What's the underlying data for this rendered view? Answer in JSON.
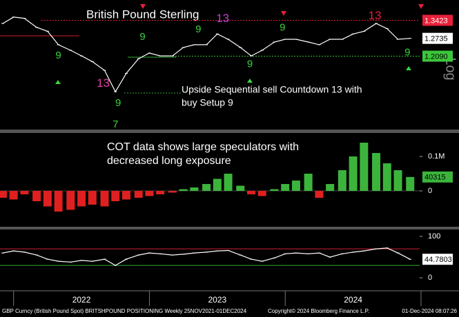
{
  "chart_data": [
    {
      "type": "line",
      "title": "British Pound Sterling",
      "annotation": [
        "Upside Sequential sell Countdown 13 with",
        "buy Setup 9"
      ],
      "scale_label": "Log",
      "log_scale": true,
      "color": "#ffffff",
      "x": [
        2021.92,
        2022.0,
        2022.08,
        2022.17,
        2022.25,
        2022.33,
        2022.42,
        2022.5,
        2022.58,
        2022.67,
        2022.75,
        2022.83,
        2022.92,
        2023.0,
        2023.08,
        2023.17,
        2023.25,
        2023.33,
        2023.42,
        2023.5,
        2023.58,
        2023.67,
        2023.75,
        2023.83,
        2023.92,
        2024.0,
        2024.08,
        2024.17,
        2024.25,
        2024.33,
        2024.42,
        2024.5,
        2024.58,
        2024.67,
        2024.75,
        2024.83,
        2024.92
      ],
      "values": [
        1.33,
        1.355,
        1.35,
        1.315,
        1.3,
        1.25,
        1.23,
        1.21,
        1.19,
        1.16,
        1.09,
        1.15,
        1.2,
        1.22,
        1.21,
        1.21,
        1.24,
        1.25,
        1.25,
        1.29,
        1.27,
        1.24,
        1.21,
        1.23,
        1.26,
        1.27,
        1.27,
        1.26,
        1.25,
        1.27,
        1.27,
        1.29,
        1.3,
        1.33,
        1.31,
        1.27,
        1.2735
      ],
      "ylim": [
        0.98,
        1.41
      ],
      "levels": [
        {
          "value": 1.3423,
          "label": "1.3423",
          "color": "#e8203a"
        },
        {
          "value": 1.209,
          "label": "1.2090",
          "color": "#3cc63c"
        }
      ],
      "td_labels": [
        {
          "text": "13",
          "x": 2023.54,
          "y": 1.347,
          "color": "#c040d0"
        },
        {
          "text": "13",
          "x": 2024.66,
          "y": 1.359,
          "color": "#e8203a"
        },
        {
          "text": "9",
          "x": 2022.95,
          "y": 1.278,
          "color": "#3cd23c"
        },
        {
          "text": "9",
          "x": 2023.36,
          "y": 1.306,
          "color": "#3cd23c"
        },
        {
          "text": "9",
          "x": 2023.98,
          "y": 1.313,
          "color": "#3cd23c"
        },
        {
          "text": "9",
          "x": 2022.33,
          "y": 1.21,
          "color": "#3cd23c"
        },
        {
          "text": "9",
          "x": 2023.74,
          "y": 1.18,
          "color": "#3cd23c"
        },
        {
          "text": "9",
          "x": 2024.9,
          "y": 1.221,
          "color": "#3cd23c"
        },
        {
          "text": "9",
          "x": 2022.77,
          "y": 1.054,
          "color": "#3cd23c"
        },
        {
          "text": "13",
          "x": 2022.66,
          "y": 1.116,
          "color": "#e040a0"
        },
        {
          "text": "7",
          "x": 2022.75,
          "y": 0.99,
          "color": "#3cd23c"
        }
      ]
    },
    {
      "type": "bar",
      "annotation": [
        "COT data shows large speculators with",
        "decreased long exposure"
      ],
      "pos_color": "#3cb43c",
      "neg_color": "#e02020",
      "x": [
        2021.92,
        2022.0,
        2022.08,
        2022.17,
        2022.25,
        2022.33,
        2022.42,
        2022.5,
        2022.58,
        2022.67,
        2022.75,
        2022.83,
        2022.92,
        2023.0,
        2023.08,
        2023.17,
        2023.25,
        2023.33,
        2023.42,
        2023.5,
        2023.58,
        2023.67,
        2023.75,
        2023.83,
        2023.92,
        2024.0,
        2024.08,
        2024.17,
        2024.25,
        2024.33,
        2024.42,
        2024.5,
        2024.58,
        2024.67,
        2024.75,
        2024.83,
        2024.92
      ],
      "values": [
        -20000,
        -25000,
        -10000,
        -30000,
        -45000,
        -60000,
        -55000,
        -45000,
        -40000,
        -45000,
        -30000,
        -25000,
        -20000,
        -15000,
        -10000,
        -5000,
        5000,
        10000,
        20000,
        35000,
        50000,
        15000,
        -10000,
        -15000,
        5000,
        20000,
        30000,
        50000,
        -20000,
        20000,
        60000,
        100000,
        140000,
        110000,
        80000,
        60000,
        40315
      ],
      "ylim": [
        -102000,
        164000
      ],
      "yticks": [
        0,
        {
          "value": 100000,
          "label": "0.1M"
        }
      ]
    },
    {
      "type": "line",
      "color": "#ffffff",
      "x": [
        2021.92,
        2022.0,
        2022.08,
        2022.17,
        2022.25,
        2022.33,
        2022.42,
        2022.5,
        2022.58,
        2022.67,
        2022.75,
        2022.83,
        2022.92,
        2023.0,
        2023.08,
        2023.17,
        2023.25,
        2023.33,
        2023.42,
        2023.5,
        2023.58,
        2023.67,
        2023.75,
        2023.83,
        2023.92,
        2024.0,
        2024.08,
        2024.17,
        2024.25,
        2024.33,
        2024.42,
        2024.5,
        2024.58,
        2024.67,
        2024.75,
        2024.83,
        2024.92
      ],
      "values": [
        60,
        65,
        62,
        55,
        45,
        40,
        38,
        42,
        40,
        45,
        30,
        45,
        55,
        60,
        58,
        55,
        57,
        60,
        62,
        65,
        66,
        55,
        45,
        40,
        48,
        58,
        60,
        58,
        60,
        50,
        58,
        62,
        65,
        70,
        72,
        60,
        44.7803
      ],
      "ylim": [
        -28,
        115
      ],
      "yticks": [
        0,
        100
      ],
      "levels": [
        {
          "value": 70,
          "color": "#d02030"
        },
        {
          "value": 30,
          "color": "#30b030"
        }
      ]
    }
  ],
  "time_axis": {
    "xlim": [
      2021.9,
      2024.99
    ],
    "xticks": [
      2022,
      2023,
      2024,
      2025
    ],
    "labels": [
      "2022",
      "2023",
      "2024"
    ]
  },
  "footer": [
    "GBP Curncy (British Pound Spot) BRITSHPOUND POSITIONING  Weekly 25NOV2021-01DEC2024",
    "Copyright© 2024 Bloomberg Finance L.P.",
    "01-Dec-2024 08:07:26"
  ]
}
